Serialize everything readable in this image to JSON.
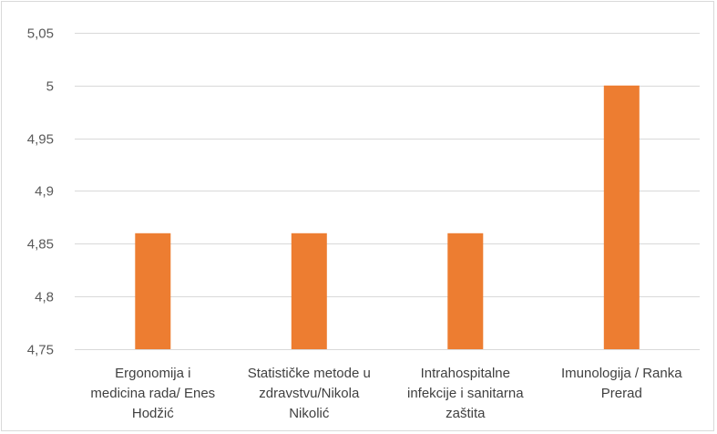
{
  "chart_data": {
    "type": "bar",
    "title": "",
    "xlabel": "",
    "ylabel": "",
    "categories": [
      [
        "Ergonomija i",
        "medicina rada/ Enes",
        "Hodžić"
      ],
      [
        "Statističke metode u",
        "zdravstvu/Nikola",
        "Nikolić"
      ],
      [
        "Intrahospitalne",
        "infekcije i sanitarna",
        "zaštita"
      ],
      [
        "Imunologija / Ranka",
        "Prerad"
      ]
    ],
    "values": [
      4.86,
      4.86,
      4.86,
      5.0
    ],
    "ylim": [
      4.75,
      5.05
    ],
    "yticks": [
      "4,75",
      "4,8",
      "4,85",
      "4,9",
      "4,95",
      "5",
      "5,05"
    ],
    "grid": true,
    "bar_color": "#ED7D31",
    "grid_color": "#D9D9D9"
  }
}
